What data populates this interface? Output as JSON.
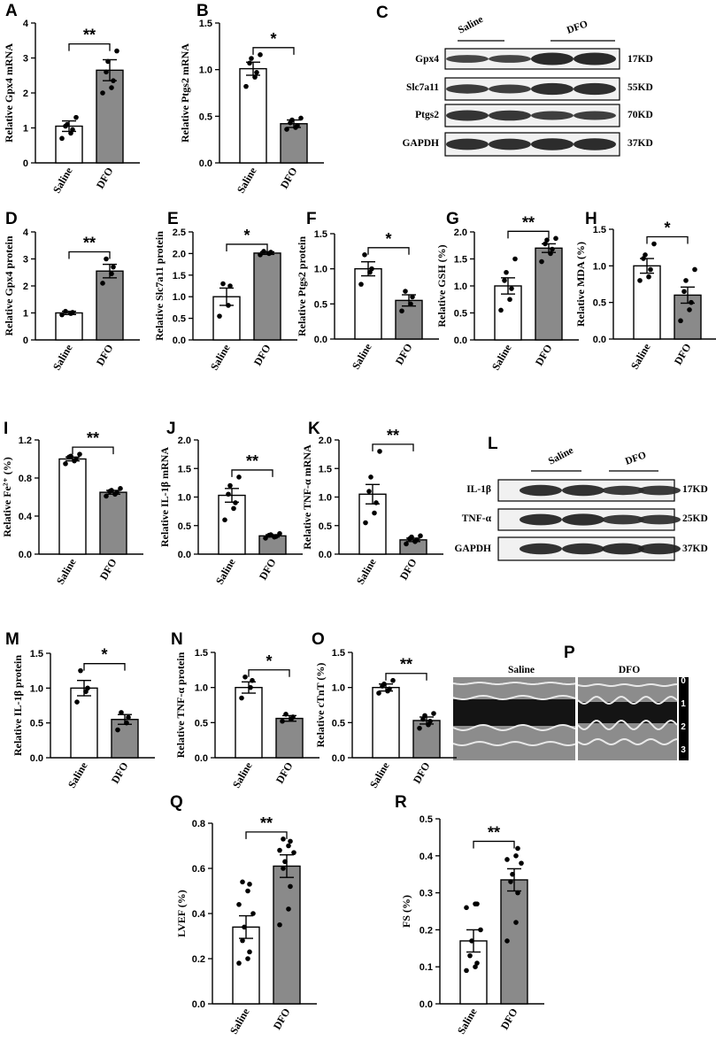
{
  "colors": {
    "saline_fill": "#ffffff",
    "dfo_fill": "#8a8a8a",
    "stroke": "#000000"
  },
  "groups": [
    "Saline",
    "DFO"
  ],
  "chart_data": [
    {
      "panel": "A",
      "type": "bar",
      "categories": [
        "Saline",
        "DFO"
      ],
      "values": [
        1.05,
        2.65
      ],
      "errors": [
        0.15,
        0.3
      ],
      "points": [
        [
          0.7,
          0.85,
          0.95,
          1.05,
          1.1,
          1.3
        ],
        [
          2.0,
          2.15,
          2.35,
          2.6,
          2.9,
          3.2
        ]
      ],
      "ylabel": "Relative Gpx4 mRNA",
      "ylim": [
        0,
        4
      ],
      "yticks": [
        "0",
        "1",
        "2",
        "3",
        "4"
      ],
      "significance": "**"
    },
    {
      "panel": "B",
      "type": "bar",
      "categories": [
        "Saline",
        "DFO"
      ],
      "values": [
        1.01,
        0.42
      ],
      "errors": [
        0.07,
        0.04
      ],
      "points": [
        [
          0.82,
          0.92,
          0.97,
          1.07,
          1.12,
          1.16
        ],
        [
          0.36,
          0.38,
          0.4,
          0.43,
          0.46,
          0.48
        ]
      ],
      "ylabel": "Relative Ptgs2 mRNA",
      "ylim": [
        0,
        1.5
      ],
      "yticks": [
        "0.0",
        "0.5",
        "1.0",
        "1.5"
      ],
      "significance": "*"
    },
    {
      "panel": "D",
      "type": "bar",
      "categories": [
        "Saline",
        "DFO"
      ],
      "values": [
        1.0,
        2.55
      ],
      "errors": [
        0.06,
        0.25
      ],
      "points": [
        [
          0.93,
          0.98,
          1.02,
          1.06
        ],
        [
          2.1,
          2.45,
          2.7,
          3.0
        ]
      ],
      "ylabel": "Relative Gpx4 protein",
      "ylim": [
        0,
        4
      ],
      "yticks": [
        "0",
        "1",
        "2",
        "3",
        "4"
      ],
      "significance": "**"
    },
    {
      "panel": "E",
      "type": "bar",
      "categories": [
        "Saline",
        "DFO"
      ],
      "values": [
        1.0,
        2.01
      ],
      "errors": [
        0.2,
        0.03
      ],
      "points": [
        [
          0.55,
          0.8,
          1.25,
          1.3
        ],
        [
          1.97,
          2.0,
          2.03,
          2.05
        ]
      ],
      "ylabel": "Relative Slc7a11 protein",
      "ylim": [
        0,
        2.5
      ],
      "yticks": [
        "0.0",
        "0.5",
        "1.0",
        "1.5",
        "2.0",
        "2.5"
      ],
      "significance": "*"
    },
    {
      "panel": "F",
      "type": "bar",
      "categories": [
        "Saline",
        "DFO"
      ],
      "values": [
        1.0,
        0.55
      ],
      "errors": [
        0.1,
        0.08
      ],
      "points": [
        [
          0.78,
          0.95,
          1.0,
          1.2
        ],
        [
          0.4,
          0.5,
          0.6,
          0.68
        ]
      ],
      "ylabel": "Relative Ptgs2 protein",
      "ylim": [
        0,
        1.5
      ],
      "yticks": [
        "0.0",
        "0.5",
        "1.0",
        "1.5"
      ],
      "significance": "*"
    },
    {
      "panel": "G",
      "type": "bar",
      "categories": [
        "Saline",
        "DFO"
      ],
      "values": [
        1.0,
        1.7
      ],
      "errors": [
        0.15,
        0.08
      ],
      "points": [
        [
          0.55,
          0.75,
          0.95,
          1.1,
          1.25,
          1.5
        ],
        [
          1.45,
          1.6,
          1.68,
          1.78,
          1.85,
          1.88
        ]
      ],
      "ylabel": "Relative GSH (%)",
      "ylim": [
        0,
        2.0
      ],
      "yticks": [
        "0.0",
        "0.5",
        "1.0",
        "1.5",
        "2.0"
      ],
      "significance": "**"
    },
    {
      "panel": "H",
      "type": "bar",
      "categories": [
        "Saline",
        "DFO"
      ],
      "values": [
        1.0,
        0.6
      ],
      "errors": [
        0.1,
        0.11
      ],
      "points": [
        [
          0.8,
          0.85,
          0.95,
          1.1,
          1.15,
          1.3
        ],
        [
          0.25,
          0.4,
          0.5,
          0.65,
          0.8,
          0.95
        ]
      ],
      "ylabel": "Relative MDA (%)",
      "ylim": [
        0,
        1.5
      ],
      "yticks": [
        "0.0",
        "0.5",
        "1.0",
        "1.5"
      ],
      "significance": "*"
    },
    {
      "panel": "I",
      "type": "bar",
      "categories": [
        "Saline",
        "DFO"
      ],
      "values": [
        1.0,
        0.65
      ],
      "errors": [
        0.02,
        0.02
      ],
      "points": [
        [
          0.95,
          0.98,
          1.0,
          1.02,
          1.03,
          1.05
        ],
        [
          0.61,
          0.63,
          0.65,
          0.66,
          0.67,
          0.69
        ]
      ],
      "ylabel": "Relative Fe²⁺ (%)",
      "ylim": [
        0,
        1.2
      ],
      "yticks": [
        "0.0",
        "0.4",
        "0.8",
        "1.2"
      ],
      "significance": "**"
    },
    {
      "panel": "J",
      "type": "bar",
      "categories": [
        "Saline",
        "DFO"
      ],
      "values": [
        1.03,
        0.32
      ],
      "errors": [
        0.12,
        0.02
      ],
      "points": [
        [
          0.6,
          0.8,
          0.9,
          1.05,
          1.2,
          1.35
        ],
        [
          0.28,
          0.3,
          0.31,
          0.33,
          0.34,
          0.36
        ]
      ],
      "ylabel": "Relative IL-1β mRNA",
      "ylim": [
        0,
        2.0
      ],
      "yticks": [
        "0.0",
        "0.5",
        "1.0",
        "1.5",
        "2.0"
      ],
      "significance": "**"
    },
    {
      "panel": "K",
      "type": "bar",
      "categories": [
        "Saline",
        "DFO"
      ],
      "values": [
        1.05,
        0.25
      ],
      "errors": [
        0.17,
        0.03
      ],
      "points": [
        [
          0.55,
          0.72,
          0.9,
          1.1,
          1.35,
          1.8
        ],
        [
          0.18,
          0.22,
          0.25,
          0.27,
          0.3,
          0.32
        ]
      ],
      "ylabel": "Relative TNF-α mRNA",
      "ylim": [
        0,
        2.0
      ],
      "yticks": [
        "0.0",
        "0.5",
        "1.0",
        "1.5",
        "2.0"
      ],
      "significance": "**"
    },
    {
      "panel": "M",
      "type": "bar",
      "categories": [
        "Saline",
        "DFO"
      ],
      "values": [
        1.0,
        0.55
      ],
      "errors": [
        0.11,
        0.07
      ],
      "points": [
        [
          0.8,
          0.95,
          1.0,
          1.25
        ],
        [
          0.4,
          0.5,
          0.58,
          0.65
        ]
      ],
      "ylabel": "Relative IL-1β protein",
      "ylim": [
        0,
        1.5
      ],
      "yticks": [
        "0.0",
        "0.5",
        "1.0",
        "1.5"
      ],
      "significance": "*"
    },
    {
      "panel": "N",
      "type": "bar",
      "categories": [
        "Saline",
        "DFO"
      ],
      "values": [
        1.0,
        0.56
      ],
      "errors": [
        0.08,
        0.04
      ],
      "points": [
        [
          0.85,
          1.0,
          1.1,
          1.15
        ],
        [
          0.52,
          0.55,
          0.58,
          0.62
        ]
      ],
      "ylabel": "Relative TNF-α protein",
      "ylim": [
        0,
        1.5
      ],
      "yticks": [
        "0.0",
        "0.5",
        "1.0",
        "1.5"
      ],
      "significance": "*"
    },
    {
      "panel": "O",
      "type": "bar",
      "categories": [
        "Saline",
        "DFO"
      ],
      "values": [
        1.0,
        0.53
      ],
      "errors": [
        0.05,
        0.05
      ],
      "points": [
        [
          0.92,
          0.95,
          0.98,
          1.02,
          1.05,
          1.1
        ],
        [
          0.42,
          0.47,
          0.52,
          0.55,
          0.6,
          0.63
        ]
      ],
      "ylabel": "Relative cTnT (%)",
      "ylim": [
        0,
        1.5
      ],
      "yticks": [
        "0.0",
        "0.5",
        "1.0",
        "1.5"
      ],
      "significance": "**"
    },
    {
      "panel": "Q",
      "type": "bar",
      "categories": [
        "Saline",
        "DFO"
      ],
      "values": [
        0.34,
        0.61
      ],
      "errors": [
        0.05,
        0.05
      ],
      "points": [
        [
          0.18,
          0.2,
          0.23,
          0.28,
          0.34,
          0.4,
          0.44,
          0.5,
          0.53,
          0.54
        ],
        [
          0.35,
          0.42,
          0.52,
          0.6,
          0.63,
          0.67,
          0.68,
          0.7,
          0.72,
          0.73
        ]
      ],
      "ylabel": "LVEF (%)",
      "ylim": [
        0,
        0.8
      ],
      "yticks": [
        "0.0",
        "0.2",
        "0.4",
        "0.6",
        "0.8"
      ],
      "significance": "**"
    },
    {
      "panel": "R",
      "type": "bar",
      "categories": [
        "Saline",
        "DFO"
      ],
      "values": [
        0.17,
        0.335
      ],
      "errors": [
        0.03,
        0.03
      ],
      "points": [
        [
          0.09,
          0.1,
          0.11,
          0.13,
          0.17,
          0.2,
          0.26,
          0.27,
          0.27
        ],
        [
          0.17,
          0.22,
          0.3,
          0.33,
          0.35,
          0.38,
          0.39,
          0.4,
          0.42
        ]
      ],
      "ylabel": "FS (%)",
      "ylim": [
        0,
        0.5
      ],
      "yticks": [
        "0.0",
        "0.1",
        "0.2",
        "0.3",
        "0.4",
        "0.5"
      ],
      "significance": "**"
    }
  ],
  "blots": [
    {
      "panel": "C",
      "group_labels": [
        "Saline",
        "DFO"
      ],
      "rows": [
        {
          "label": "Gpx4",
          "kd": "17KD"
        },
        {
          "label": "Slc7a11",
          "kd": "55KD"
        },
        {
          "label": "Ptgs2",
          "kd": "70KD"
        },
        {
          "label": "GAPDH",
          "kd": "37KD"
        }
      ]
    },
    {
      "panel": "L",
      "group_labels": [
        "Saline",
        "DFO"
      ],
      "rows": [
        {
          "label": "IL-1β",
          "kd": "17KD"
        },
        {
          "label": "TNF-α",
          "kd": "25KD"
        },
        {
          "label": "GAPDH",
          "kd": "37KD"
        }
      ]
    }
  ],
  "echo": {
    "panel": "P",
    "labels": [
      "Saline",
      "DFO"
    ],
    "scale": [
      "0",
      "1",
      "2",
      "3"
    ]
  }
}
